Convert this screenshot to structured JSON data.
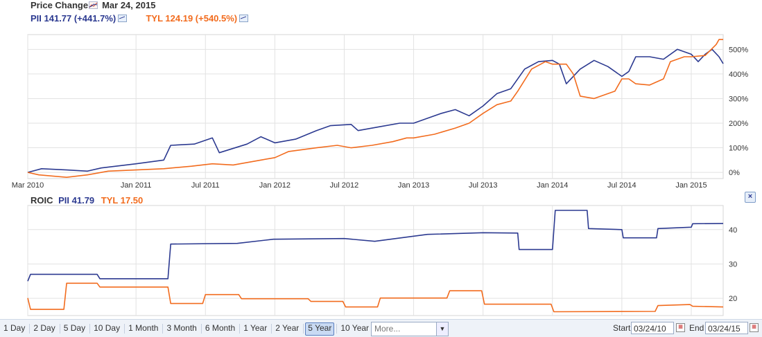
{
  "header": {
    "title": "Price Change",
    "date": "Mar 24, 2015",
    "pii_label": "PII 141.77 (+441.7%)",
    "tyl_label": "TYL 124.19 (+540.5%)"
  },
  "roic_header": {
    "title": "ROIC",
    "pii_label": "PII 41.79",
    "tyl_label": "TYL 17.50"
  },
  "close_label": "×",
  "colors": {
    "pii": "#2b3990",
    "tyl": "#f26b1d",
    "grid": "#e2e2e2"
  },
  "chart_data": [
    {
      "type": "line",
      "title": "Price Change",
      "x_ticks": [
        "Mar 2010",
        "Jan 2011",
        "Jul 2011",
        "Jan 2012",
        "Jul 2012",
        "Jan 2013",
        "Jul 2013",
        "Jan 2014",
        "Jul 2014",
        "Jan 2015"
      ],
      "x_tick_years": [
        2010.22,
        2011.0,
        2011.5,
        2012.0,
        2012.5,
        2013.0,
        2013.5,
        2014.0,
        2014.5,
        2015.0
      ],
      "y_ticks": [
        "0%",
        "100%",
        "200%",
        "300%",
        "400%",
        "500%"
      ],
      "y_tick_values": [
        0,
        100,
        200,
        300,
        400,
        500
      ],
      "xlim": [
        2010.22,
        2015.23
      ],
      "ylim": [
        -25,
        560
      ],
      "series": [
        {
          "name": "PII 141.77 (+441.7%)",
          "color": "#2b3990",
          "points": [
            [
              2010.22,
              0
            ],
            [
              2010.32,
              15
            ],
            [
              2010.5,
              10
            ],
            [
              2010.65,
              5
            ],
            [
              2010.75,
              18
            ],
            [
              2011.0,
              35
            ],
            [
              2011.2,
              50
            ],
            [
              2011.25,
              110
            ],
            [
              2011.42,
              115
            ],
            [
              2011.55,
              140
            ],
            [
              2011.6,
              80
            ],
            [
              2011.8,
              115
            ],
            [
              2011.9,
              145
            ],
            [
              2012.0,
              120
            ],
            [
              2012.15,
              135
            ],
            [
              2012.3,
              170
            ],
            [
              2012.4,
              190
            ],
            [
              2012.55,
              195
            ],
            [
              2012.6,
              170
            ],
            [
              2012.75,
              185
            ],
            [
              2012.9,
              200
            ],
            [
              2013.0,
              200
            ],
            [
              2013.1,
              220
            ],
            [
              2013.2,
              240
            ],
            [
              2013.3,
              255
            ],
            [
              2013.4,
              230
            ],
            [
              2013.5,
              270
            ],
            [
              2013.6,
              320
            ],
            [
              2013.7,
              340
            ],
            [
              2013.8,
              420
            ],
            [
              2013.9,
              450
            ],
            [
              2014.0,
              455
            ],
            [
              2014.05,
              440
            ],
            [
              2014.1,
              360
            ],
            [
              2014.2,
              420
            ],
            [
              2014.3,
              455
            ],
            [
              2014.4,
              430
            ],
            [
              2014.5,
              390
            ],
            [
              2014.55,
              410
            ],
            [
              2014.6,
              470
            ],
            [
              2014.7,
              470
            ],
            [
              2014.8,
              460
            ],
            [
              2014.9,
              500
            ],
            [
              2015.0,
              480
            ],
            [
              2015.05,
              450
            ],
            [
              2015.1,
              480
            ],
            [
              2015.15,
              500
            ],
            [
              2015.2,
              470
            ],
            [
              2015.23,
              442
            ]
          ]
        },
        {
          "name": "TYL 124.19 (+540.5%)",
          "color": "#f26b1d",
          "points": [
            [
              2010.22,
              0
            ],
            [
              2010.3,
              -10
            ],
            [
              2010.5,
              -20
            ],
            [
              2010.65,
              -10
            ],
            [
              2010.8,
              5
            ],
            [
              2011.0,
              10
            ],
            [
              2011.2,
              15
            ],
            [
              2011.4,
              25
            ],
            [
              2011.55,
              35
            ],
            [
              2011.7,
              30
            ],
            [
              2011.9,
              50
            ],
            [
              2012.0,
              60
            ],
            [
              2012.1,
              85
            ],
            [
              2012.3,
              100
            ],
            [
              2012.45,
              110
            ],
            [
              2012.55,
              100
            ],
            [
              2012.7,
              110
            ],
            [
              2012.85,
              125
            ],
            [
              2012.95,
              140
            ],
            [
              2013.0,
              140
            ],
            [
              2013.15,
              155
            ],
            [
              2013.3,
              180
            ],
            [
              2013.4,
              200
            ],
            [
              2013.5,
              240
            ],
            [
              2013.6,
              275
            ],
            [
              2013.7,
              290
            ],
            [
              2013.75,
              330
            ],
            [
              2013.85,
              420
            ],
            [
              2013.95,
              450
            ],
            [
              2014.0,
              440
            ],
            [
              2014.1,
              440
            ],
            [
              2014.15,
              400
            ],
            [
              2014.2,
              310
            ],
            [
              2014.3,
              300
            ],
            [
              2014.45,
              330
            ],
            [
              2014.5,
              380
            ],
            [
              2014.55,
              380
            ],
            [
              2014.6,
              360
            ],
            [
              2014.7,
              355
            ],
            [
              2014.8,
              380
            ],
            [
              2014.85,
              450
            ],
            [
              2014.95,
              470
            ],
            [
              2015.0,
              470
            ],
            [
              2015.1,
              475
            ],
            [
              2015.18,
              520
            ],
            [
              2015.2,
              540
            ],
            [
              2015.23,
              540
            ]
          ]
        }
      ]
    },
    {
      "type": "line",
      "title": "ROIC",
      "y_ticks": [
        "20",
        "30",
        "40"
      ],
      "y_tick_values": [
        20,
        30,
        40
      ],
      "xlim": [
        2010.22,
        2015.23
      ],
      "ylim": [
        15,
        47
      ],
      "series": [
        {
          "name": "PII 41.79",
          "color": "#2b3990",
          "points": [
            [
              2010.22,
              25
            ],
            [
              2010.24,
              27
            ],
            [
              2010.72,
              27
            ],
            [
              2010.74,
              25.7
            ],
            [
              2011.23,
              25.7
            ],
            [
              2011.25,
              35.8
            ],
            [
              2011.73,
              36
            ],
            [
              2011.99,
              37.2
            ],
            [
              2012.5,
              37.4
            ],
            [
              2012.72,
              36.6
            ],
            [
              2013.1,
              38.6
            ],
            [
              2013.5,
              39.1
            ],
            [
              2013.75,
              39
            ],
            [
              2013.76,
              34.2
            ],
            [
              2014.0,
              34.2
            ],
            [
              2014.02,
              45.6
            ],
            [
              2014.25,
              45.6
            ],
            [
              2014.26,
              40.3
            ],
            [
              2014.5,
              40
            ],
            [
              2014.51,
              37.6
            ],
            [
              2014.75,
              37.6
            ],
            [
              2014.76,
              40.3
            ],
            [
              2015.0,
              40.7
            ],
            [
              2015.01,
              41.7
            ],
            [
              2015.23,
              41.79
            ]
          ]
        },
        {
          "name": "TYL 17.50",
          "color": "#f26b1d",
          "points": [
            [
              2010.22,
              20.1
            ],
            [
              2010.24,
              16.8
            ],
            [
              2010.48,
              16.8
            ],
            [
              2010.5,
              24.4
            ],
            [
              2010.72,
              24.4
            ],
            [
              2010.74,
              23.3
            ],
            [
              2011.23,
              23.3
            ],
            [
              2011.25,
              18.5
            ],
            [
              2011.48,
              18.5
            ],
            [
              2011.5,
              21.1
            ],
            [
              2011.74,
              21.1
            ],
            [
              2011.76,
              19.9
            ],
            [
              2012.24,
              19.9
            ],
            [
              2012.26,
              19.1
            ],
            [
              2012.49,
              19.1
            ],
            [
              2012.51,
              17.5
            ],
            [
              2012.74,
              17.5
            ],
            [
              2012.76,
              20.1
            ],
            [
              2013.24,
              20.1
            ],
            [
              2013.26,
              22.2
            ],
            [
              2013.49,
              22.2
            ],
            [
              2013.51,
              18.3
            ],
            [
              2013.99,
              18.3
            ],
            [
              2014.01,
              16.1
            ],
            [
              2014.74,
              16.2
            ],
            [
              2014.76,
              17.9
            ],
            [
              2014.99,
              18.2
            ],
            [
              2015.01,
              17.7
            ],
            [
              2015.23,
              17.5
            ]
          ]
        }
      ]
    }
  ],
  "toolbar": {
    "ranges": [
      "1 Day",
      "2 Day",
      "5 Day",
      "10 Day",
      "1 Month",
      "3 Month",
      "6 Month",
      "1 Year",
      "2 Year",
      "5 Year",
      "10 Year"
    ],
    "selected": "5 Year",
    "more_label": "More...",
    "start_label": "Start",
    "start_value": "03/24/10",
    "end_label": "End",
    "end_value": "03/24/15"
  }
}
